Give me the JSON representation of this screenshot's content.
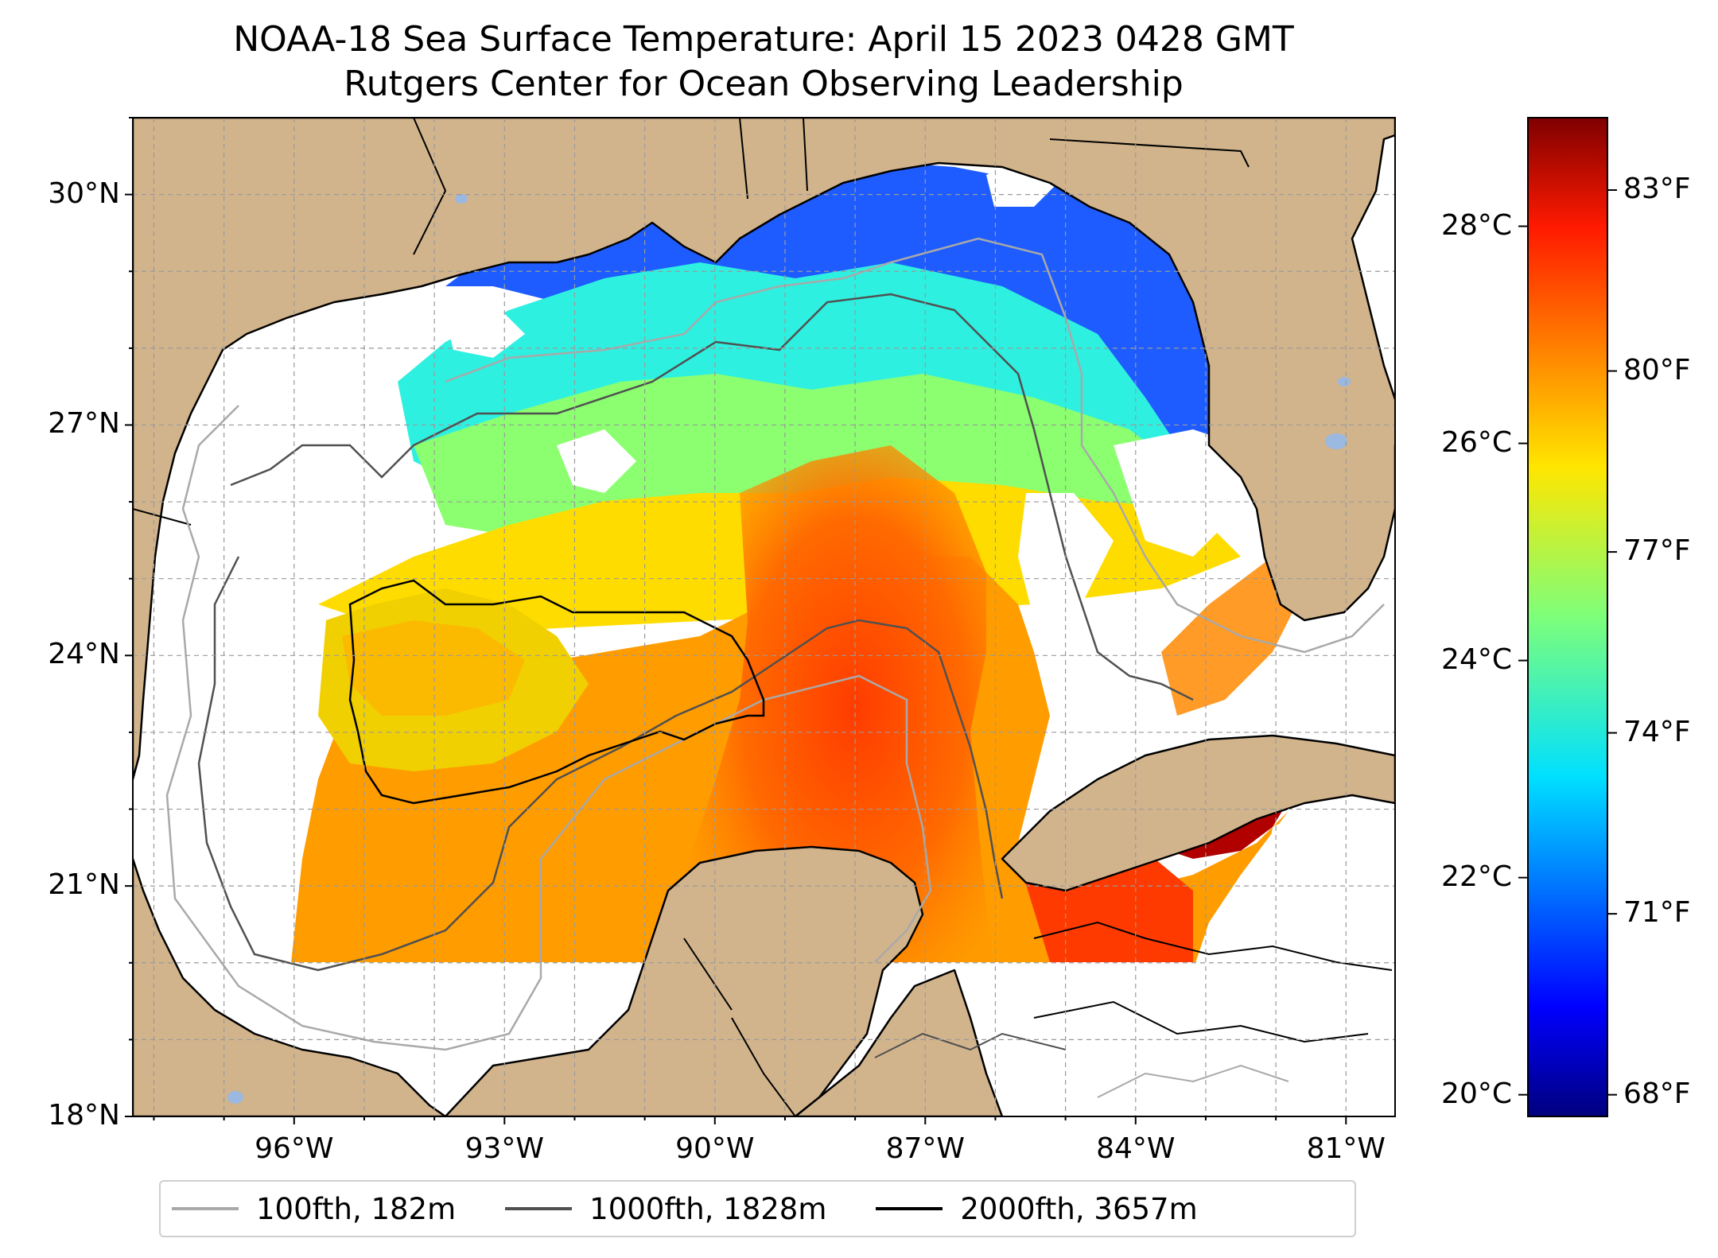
{
  "title": "NOAA-18 Sea Surface Temperature: April 15 2023 0428 GMT",
  "subtitle": "Rutgers Center for Ocean Observing Leadership",
  "map": {
    "lon_range": [
      -98.3,
      -80.3
    ],
    "lat_range": [
      18.0,
      31.0
    ],
    "lat_ticks": [
      {
        "value": 30,
        "label": "30°N"
      },
      {
        "value": 27,
        "label": "27°N"
      },
      {
        "value": 24,
        "label": "24°N"
      },
      {
        "value": 21,
        "label": "21°N"
      },
      {
        "value": 18,
        "label": "18°N"
      }
    ],
    "lon_ticks": [
      {
        "value": -96,
        "label": "96°W"
      },
      {
        "value": -93,
        "label": "93°W"
      },
      {
        "value": -90,
        "label": "90°W"
      },
      {
        "value": -87,
        "label": "87°W"
      },
      {
        "value": -84,
        "label": "84°W"
      },
      {
        "value": -81,
        "label": "81°W"
      }
    ],
    "grid": true,
    "land_color": "#d2b48c",
    "ocean_color": "#ffffff",
    "lake_color": "#9ab8e0"
  },
  "colorbar": {
    "colormap": "jet",
    "celsius_range": [
      19.8,
      29.0
    ],
    "celsius_ticks": [
      {
        "value": 28,
        "label": "28°C"
      },
      {
        "value": 26,
        "label": "26°C"
      },
      {
        "value": 24,
        "label": "24°C"
      },
      {
        "value": 22,
        "label": "22°C"
      },
      {
        "value": 20,
        "label": "20°C"
      }
    ],
    "fahrenheit_ticks": [
      {
        "value": 83,
        "label": "83°F"
      },
      {
        "value": 80,
        "label": "80°F"
      },
      {
        "value": 77,
        "label": "77°F"
      },
      {
        "value": 74,
        "label": "74°F"
      },
      {
        "value": 71,
        "label": "71°F"
      },
      {
        "value": 68,
        "label": "68°F"
      }
    ]
  },
  "legend": {
    "items": [
      {
        "label": "100fth, 182m",
        "color": "#a9a9a9"
      },
      {
        "label": "1000fth, 1828m",
        "color": "#505050"
      },
      {
        "label": "2000fth, 3657m",
        "color": "#000000"
      }
    ]
  }
}
